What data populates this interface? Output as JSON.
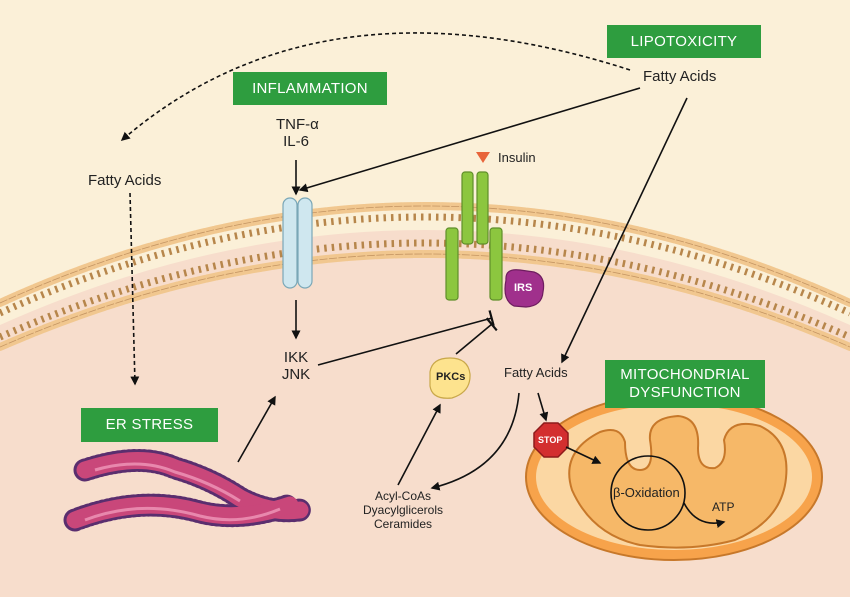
{
  "lipotoxicity_label": "LIPOTOXICITY",
  "inflammation_label": "INFLAMMATION",
  "er_stress_label": "ER STRESS",
  "mito_label_line1": "MITOCHONDRIAL",
  "mito_label_line2": "DYSFUNCTION",
  "fatty_acids_top": "Fatty Acids",
  "fatty_acids_left": "Fatty Acids",
  "fatty_acids_center": "Fatty Acids",
  "tnf_alpha": "TNF-α",
  "il6": "IL-6",
  "insulin": "Insulin",
  "irs": "IRS",
  "pkcs": "PKCs",
  "ikk": "IKK",
  "jnk": "JNK",
  "acyl_coas": "Acyl-CoAs",
  "dyacylglicerols": "Dyacylglicerols",
  "ceramides": "Ceramides",
  "stop": "STOP",
  "beta_oxidation": "β-Oxidation",
  "atp": "ATP",
  "colors": {
    "outer_background": "#fbf0d8",
    "cytoplasm": "#f7ddcc",
    "label_box": "#2e9d3f",
    "receptor": "#8cc63f",
    "tnf_receptor": "#cfe7ef",
    "irs": "#a0308c",
    "pkc": "#fde38e",
    "mitochondrion": "#f7a34b",
    "er": "#c9477a",
    "stop_sign": "#d32f2f"
  }
}
